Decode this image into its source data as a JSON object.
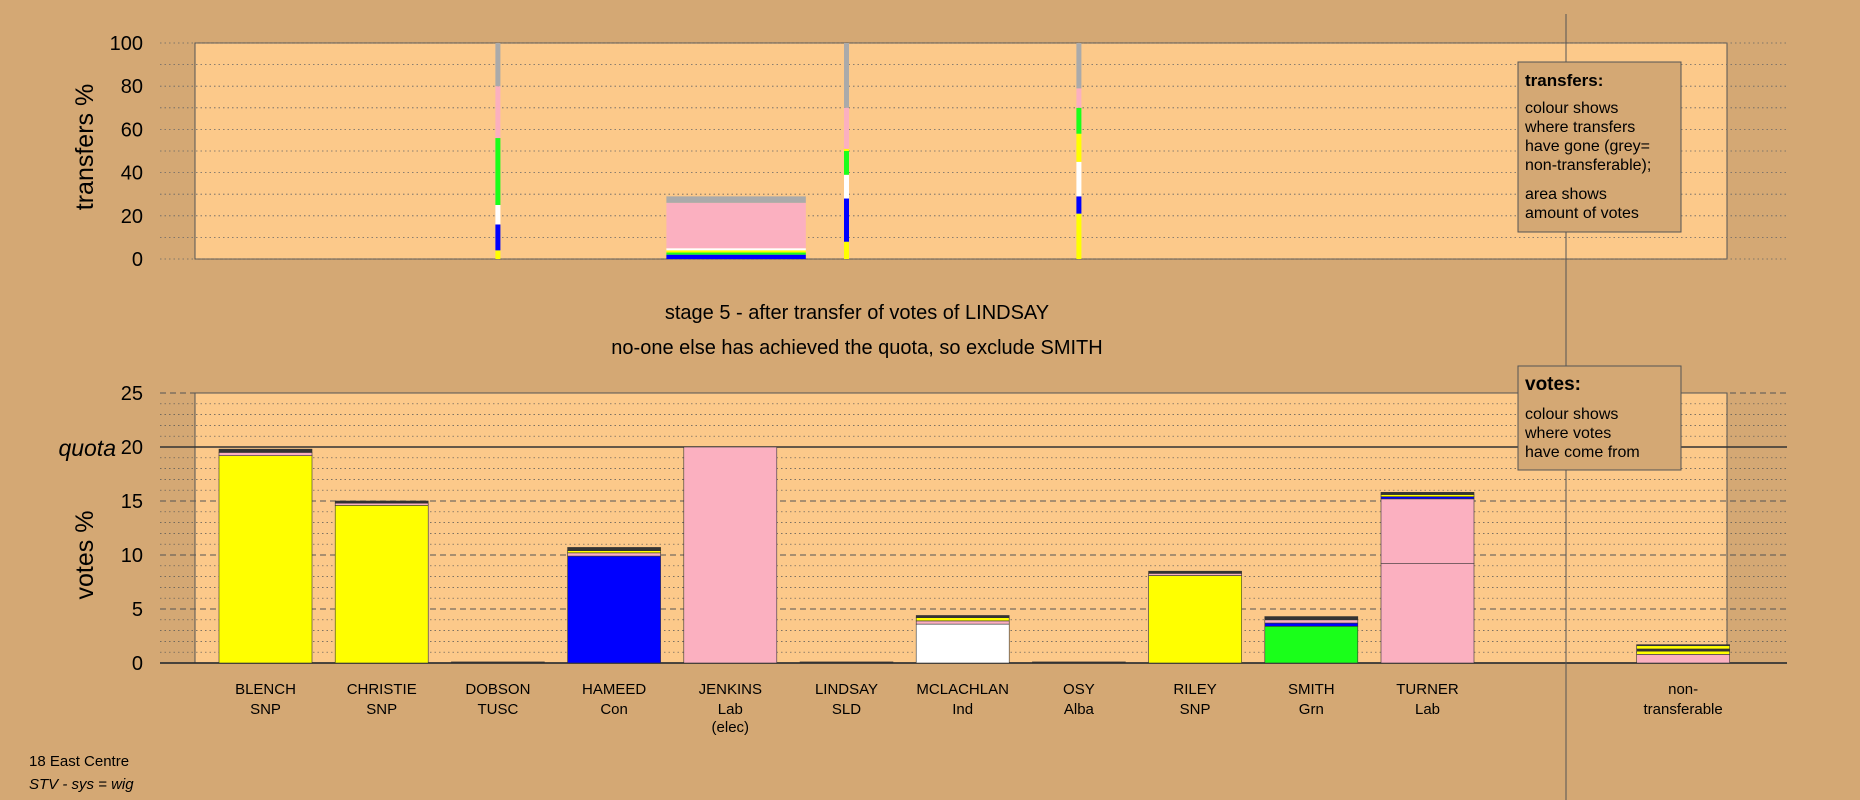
{
  "colors": {
    "background": "#d4a874",
    "plot_bg": "#fcc98a",
    "yellow": "#ffff00",
    "blue": "#0000ff",
    "pink": "#fbb0c0",
    "white": "#ffffff",
    "green": "#1aff1a",
    "grey": "#aaaaaa",
    "dark": "#333333"
  },
  "chart_data": [
    {
      "type": "bar",
      "ylabel": "transfers %",
      "ylim": [
        0,
        100
      ],
      "yticks": [
        0,
        20,
        40,
        60,
        80,
        100
      ],
      "grid": true,
      "legend": {
        "title": "transfers:",
        "lines": [
          "colour shows",
          "where transfers",
          "have gone (grey=",
          "non-transferable);"
        ],
        "lines2": [
          "area shows",
          "amount of votes"
        ]
      },
      "transfer_strips": [
        {
          "x_index": 2.0,
          "segments": [
            {
              "color": "yellow",
              "from": 0,
              "to": 4
            },
            {
              "color": "blue",
              "from": 4,
              "to": 16
            },
            {
              "color": "white",
              "from": 16,
              "to": 25
            },
            {
              "color": "green",
              "from": 25,
              "to": 56
            },
            {
              "color": "pink",
              "from": 56,
              "to": 80
            },
            {
              "color": "grey",
              "from": 80,
              "to": 100
            }
          ]
        },
        {
          "x_index": 5.0,
          "segments": [
            {
              "color": "yellow",
              "from": 0,
              "to": 8
            },
            {
              "color": "blue",
              "from": 8,
              "to": 28
            },
            {
              "color": "white",
              "from": 28,
              "to": 39
            },
            {
              "color": "green",
              "from": 39,
              "to": 50
            },
            {
              "color": "yellow",
              "from": 50,
              "to": 51
            },
            {
              "color": "pink",
              "from": 51,
              "to": 70
            },
            {
              "color": "grey",
              "from": 70,
              "to": 100
            }
          ]
        },
        {
          "x_index": 7.0,
          "segments": [
            {
              "color": "yellow",
              "from": 0,
              "to": 21
            },
            {
              "color": "blue",
              "from": 21,
              "to": 29
            },
            {
              "color": "white",
              "from": 29,
              "to": 45
            },
            {
              "color": "yellow",
              "from": 45,
              "to": 58
            },
            {
              "color": "green",
              "from": 58,
              "to": 70
            },
            {
              "color": "pink",
              "from": 70,
              "to": 79
            },
            {
              "color": "grey",
              "from": 79,
              "to": 100
            }
          ]
        }
      ],
      "transfer_block": {
        "x_start": 3.45,
        "x_end": 4.65,
        "segments": [
          {
            "color": "blue",
            "from": 0,
            "to": 2
          },
          {
            "color": "green",
            "from": 2,
            "to": 3
          },
          {
            "color": "yellow",
            "from": 3,
            "to": 4
          },
          {
            "color": "white",
            "from": 4,
            "to": 5
          },
          {
            "color": "pink",
            "from": 5,
            "to": 26
          },
          {
            "color": "grey",
            "from": 26,
            "to": 29
          }
        ]
      }
    },
    {
      "type": "bar",
      "ylabel": "votes %",
      "ylim": [
        0,
        25
      ],
      "yticks": [
        0,
        5,
        10,
        15,
        20,
        25
      ],
      "quota": 20,
      "quota_label": "quota",
      "grid": true,
      "legend": {
        "title": "votes:",
        "lines": [
          "colour shows",
          "where votes",
          "have come from"
        ]
      },
      "categories": [
        {
          "name": "BLENCH",
          "party": "SNP"
        },
        {
          "name": "CHRISTIE",
          "party": "SNP"
        },
        {
          "name": "DOBSON",
          "party": "TUSC"
        },
        {
          "name": "HAMEED",
          "party": "Con"
        },
        {
          "name": "JENKINS",
          "party": "Lab",
          "extra": "(elec)"
        },
        {
          "name": "LINDSAY",
          "party": "SLD"
        },
        {
          "name": "MCLACHLAN",
          "party": "Ind"
        },
        {
          "name": "OSY",
          "party": "Alba"
        },
        {
          "name": "RILEY",
          "party": "SNP"
        },
        {
          "name": "SMITH",
          "party": "Grn"
        },
        {
          "name": "TURNER",
          "party": "Lab"
        },
        {
          "name": "non-",
          "party": "transferable",
          "x_index": 12.2
        }
      ],
      "bars": [
        {
          "segments": [
            {
              "color": "yellow",
              "value": 19.2
            },
            {
              "color": "pink",
              "value": 0.3
            },
            {
              "color": "dark",
              "value": 0.3
            }
          ]
        },
        {
          "segments": [
            {
              "color": "yellow",
              "value": 14.6
            },
            {
              "color": "pink",
              "value": 0.2
            },
            {
              "color": "dark",
              "value": 0.2
            }
          ]
        },
        {
          "segments": [
            {
              "color": "dark",
              "value": 0.1
            }
          ]
        },
        {
          "segments": [
            {
              "color": "blue",
              "value": 9.9
            },
            {
              "color": "pink",
              "value": 0.3
            },
            {
              "color": "yellow",
              "value": 0.2
            },
            {
              "color": "dark",
              "value": 0.3
            }
          ]
        },
        {
          "segments": [
            {
              "color": "pink",
              "value": 20.0
            }
          ]
        },
        {
          "segments": [
            {
              "color": "dark",
              "value": 0.1
            }
          ]
        },
        {
          "segments": [
            {
              "color": "white",
              "value": 3.6
            },
            {
              "color": "pink",
              "value": 0.3
            },
            {
              "color": "yellow",
              "value": 0.3
            },
            {
              "color": "dark",
              "value": 0.2
            }
          ]
        },
        {
          "segments": [
            {
              "color": "dark",
              "value": 0.1
            }
          ]
        },
        {
          "segments": [
            {
              "color": "yellow",
              "value": 8.1
            },
            {
              "color": "pink",
              "value": 0.2
            },
            {
              "color": "dark",
              "value": 0.2
            }
          ]
        },
        {
          "segments": [
            {
              "color": "green",
              "value": 3.4
            },
            {
              "color": "blue",
              "value": 0.3
            },
            {
              "color": "pink",
              "value": 0.3
            },
            {
              "color": "dark",
              "value": 0.3
            }
          ]
        },
        {
          "segments": [
            {
              "color": "pink",
              "value": 9.2
            },
            {
              "color": "pink",
              "value": 6.0
            },
            {
              "color": "blue",
              "value": 0.2
            },
            {
              "color": "yellow",
              "value": 0.2
            },
            {
              "color": "dark",
              "value": 0.2
            }
          ]
        },
        {
          "segments": [
            {
              "color": "pink",
              "value": 0.8
            },
            {
              "color": "yellow",
              "value": 0.3
            },
            {
              "color": "dark",
              "value": 0.2
            },
            {
              "color": "yellow",
              "value": 0.3
            },
            {
              "color": "dark",
              "value": 0.1
            }
          ]
        }
      ]
    }
  ],
  "captions": {
    "stage": "stage 5 - after transfer of votes of LINDSAY",
    "action": "no-one else has achieved the quota, so exclude SMITH"
  },
  "footer": {
    "line1": "18 East Centre",
    "line2": "STV - sys = wig"
  }
}
